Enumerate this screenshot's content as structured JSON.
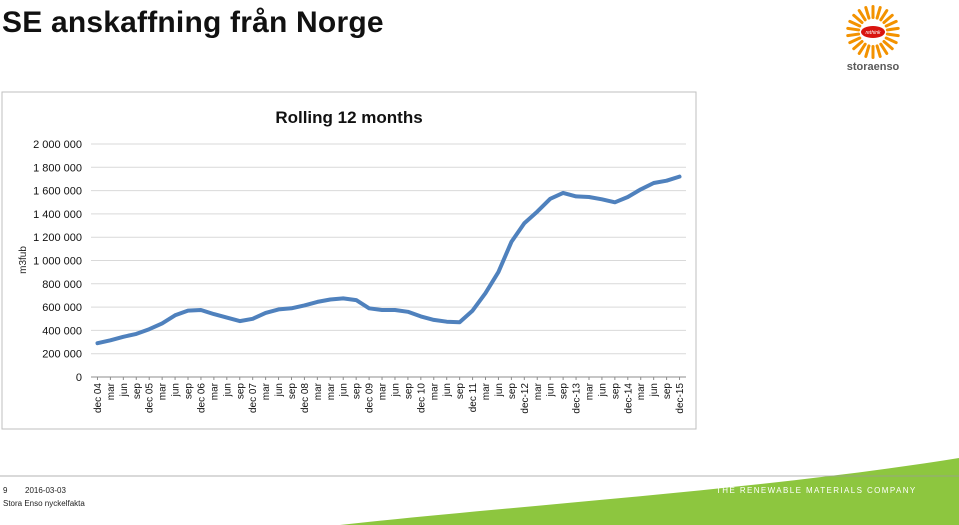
{
  "slide": {
    "title": "SE anskaffning från Norge",
    "page_number": "9",
    "date": "2016-03-03",
    "company_label": "Stora Enso nyckelfakta",
    "tagline": "THE RENEWABLE MATERIALS COMPANY",
    "logo_text": "storaenso",
    "logo_badge_text": "rethink",
    "colors": {
      "accent_green": "#8dc63f",
      "logo_orange": "#f39200",
      "series_blue": "#4f81bd"
    }
  },
  "chart_data": {
    "type": "line",
    "title": "Rolling 12 months",
    "ylabel": "m3fub",
    "xlabel": "",
    "ylim": [
      0,
      2000000
    ],
    "yticks": [
      0,
      200000,
      400000,
      600000,
      800000,
      1000000,
      1200000,
      1400000,
      1600000,
      1800000,
      2000000
    ],
    "ytick_labels": [
      "0",
      "200 000",
      "400 000",
      "600 000",
      "800 000",
      "1 000 000",
      "1 200 000",
      "1 400 000",
      "1 600 000",
      "1 800 000",
      "2 000 000"
    ],
    "gridlines": "horizontal",
    "legend": "none",
    "categories": [
      "dec 04",
      "mar",
      "jun",
      "sep",
      "dec 05",
      "mar",
      "jun",
      "sep",
      "dec 06",
      "mar",
      "jun",
      "sep",
      "dec 07",
      "mar",
      "jun",
      "sep",
      "dec 08",
      "mar",
      "mar",
      "jun",
      "sep",
      "dec 09",
      "mar",
      "jun",
      "sep",
      "dec 10",
      "mar",
      "jun",
      "sep",
      "dec 11",
      "mar",
      "jun",
      "sep",
      "dec-12",
      "mar",
      "jun",
      "sep",
      "dec-13",
      "mar",
      "jun",
      "sep",
      "dec-14",
      "mar",
      "jun",
      "sep",
      "dec-15"
    ],
    "values": [
      290000,
      315000,
      345000,
      370000,
      410000,
      460000,
      530000,
      570000,
      575000,
      540000,
      510000,
      480000,
      500000,
      550000,
      580000,
      590000,
      615000,
      645000,
      665000,
      675000,
      660000,
      590000,
      575000,
      575000,
      560000,
      520000,
      490000,
      475000,
      470000,
      570000,
      720000,
      900000,
      1160000,
      1320000,
      1420000,
      1530000,
      1580000,
      1550000,
      1545000,
      1525000,
      1500000,
      1545000,
      1610000,
      1665000,
      1685000,
      1720000
    ]
  }
}
